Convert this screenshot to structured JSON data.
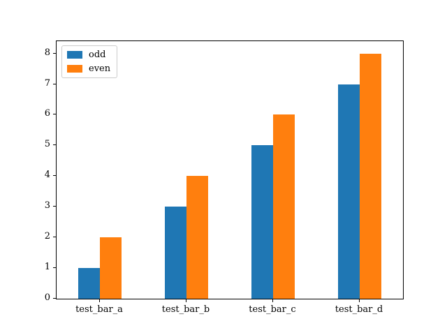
{
  "chart_data": {
    "type": "bar",
    "title": "",
    "xlabel": "",
    "ylabel": "",
    "categories": [
      "test_bar_a",
      "test_bar_b",
      "test_bar_c",
      "test_bar_d"
    ],
    "series": [
      {
        "name": "odd",
        "values": [
          1,
          3,
          5,
          7
        ],
        "color": "#1f77b4"
      },
      {
        "name": "even",
        "values": [
          2,
          4,
          6,
          8
        ],
        "color": "#ff7f0e"
      }
    ],
    "ylim": [
      0,
      8.4
    ],
    "yticks": [
      "0",
      "1",
      "2",
      "3",
      "4",
      "5",
      "6",
      "7",
      "8"
    ],
    "grid": false,
    "legend": {
      "position": "upper-left",
      "entries": [
        "odd",
        "even"
      ]
    },
    "colors": {
      "odd": "#1f77b4",
      "even": "#ff7f0e",
      "spine": "#000000",
      "legend_border": "#cccccc",
      "background": "#ffffff"
    }
  }
}
